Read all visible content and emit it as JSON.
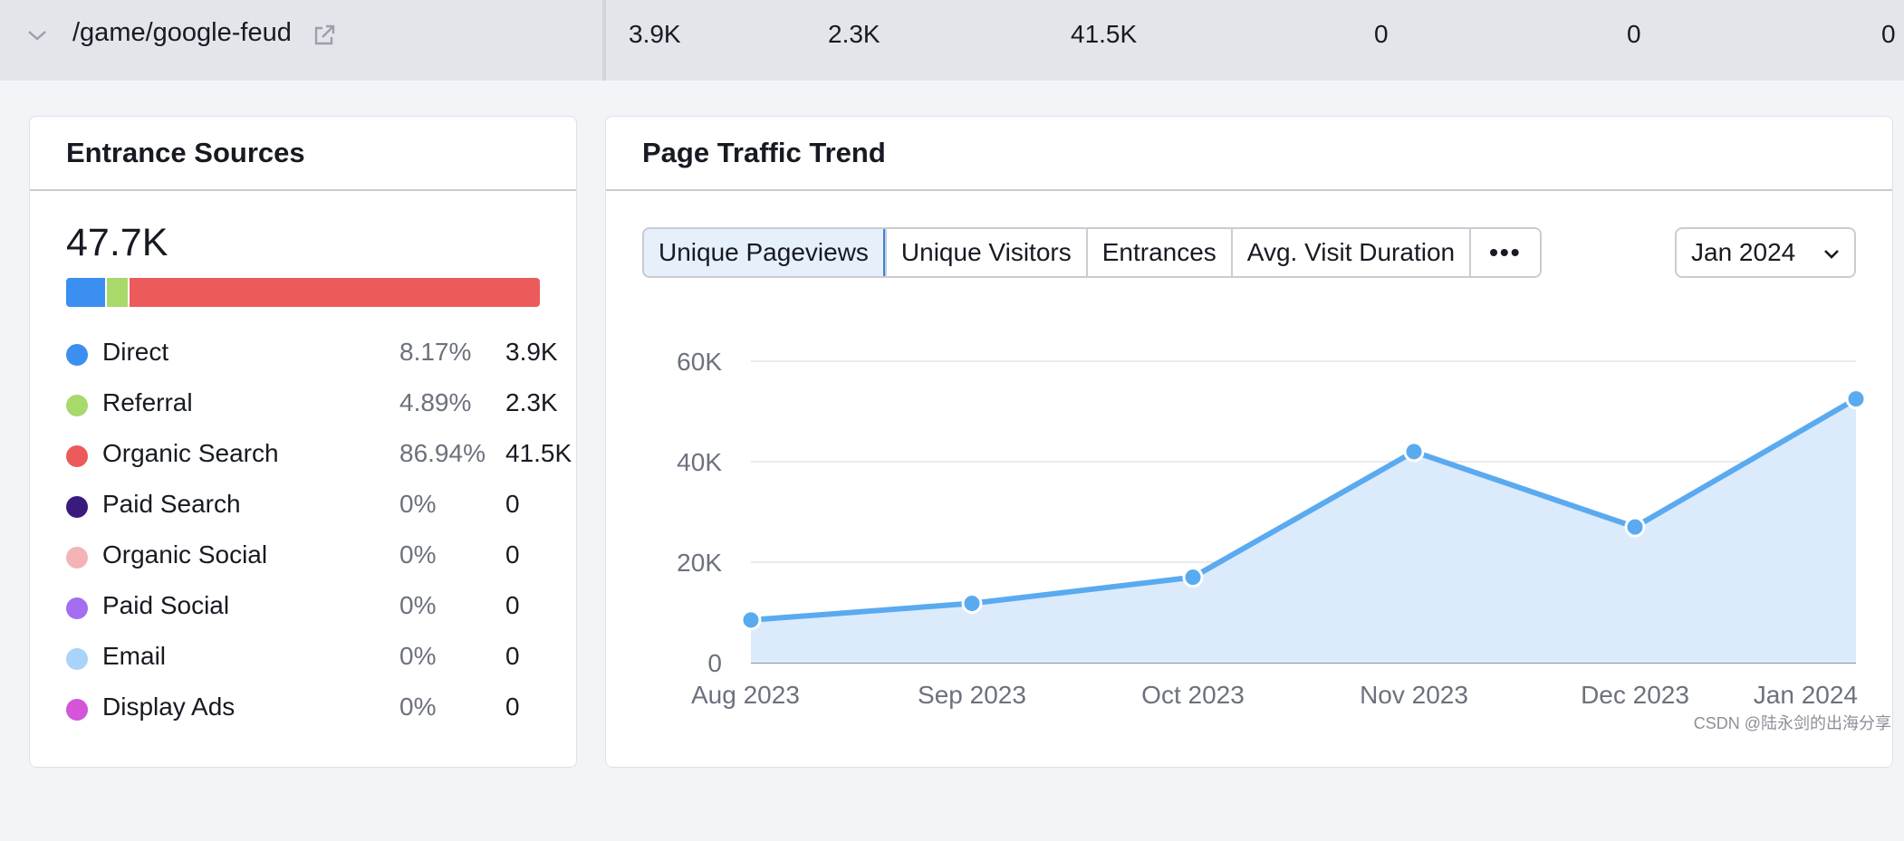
{
  "top_row": {
    "path": "/game/google-feud",
    "values": [
      "3.9K",
      "2.3K",
      "41.5K",
      "0",
      "0",
      "0"
    ]
  },
  "entrance": {
    "title": "Entrance Sources",
    "total": "47.7K",
    "sources": [
      {
        "name": "Direct",
        "pct": "8.17%",
        "value": "3.9K",
        "share": 8.17,
        "color": "#3a8ff0"
      },
      {
        "name": "Referral",
        "pct": "4.89%",
        "value": "2.3K",
        "share": 4.89,
        "color": "#a7d96b"
      },
      {
        "name": "Organic Search",
        "pct": "86.94%",
        "value": "41.5K",
        "share": 86.94,
        "color": "#ec5a5a"
      },
      {
        "name": "Paid Search",
        "pct": "0%",
        "value": "0",
        "share": 0,
        "color": "#3b1a7e"
      },
      {
        "name": "Organic Social",
        "pct": "0%",
        "value": "0",
        "share": 0,
        "color": "#f4b4b6"
      },
      {
        "name": "Paid Social",
        "pct": "0%",
        "value": "0",
        "share": 0,
        "color": "#a36ff0"
      },
      {
        "name": "Email",
        "pct": "0%",
        "value": "0",
        "share": 0,
        "color": "#a9d3fb"
      },
      {
        "name": "Display Ads",
        "pct": "0%",
        "value": "0",
        "share": 0,
        "color": "#d455d9"
      }
    ]
  },
  "trend": {
    "title": "Page Traffic Trend",
    "tabs": [
      "Unique Pageviews",
      "Unique Visitors",
      "Entrances",
      "Avg. Visit Duration",
      "•••"
    ],
    "month": "Jan 2024"
  },
  "chart_data": {
    "type": "area",
    "x": [
      "Aug 2023",
      "Sep 2023",
      "Oct 2023",
      "Nov 2023",
      "Dec 2023",
      "Jan 2024"
    ],
    "values": [
      8500,
      11800,
      17000,
      42000,
      27000,
      52500
    ],
    "yticks": [
      "0",
      "20K",
      "40K",
      "60K"
    ],
    "ytick_values": [
      0,
      20000,
      40000,
      60000
    ],
    "ylim": [
      0,
      60000
    ],
    "title": "",
    "xlabel": "",
    "ylabel": "",
    "line_color": "#5aaaf0",
    "fill_color": "#dbebfc"
  },
  "watermark": "CSDN @陆永剑的出海分享"
}
